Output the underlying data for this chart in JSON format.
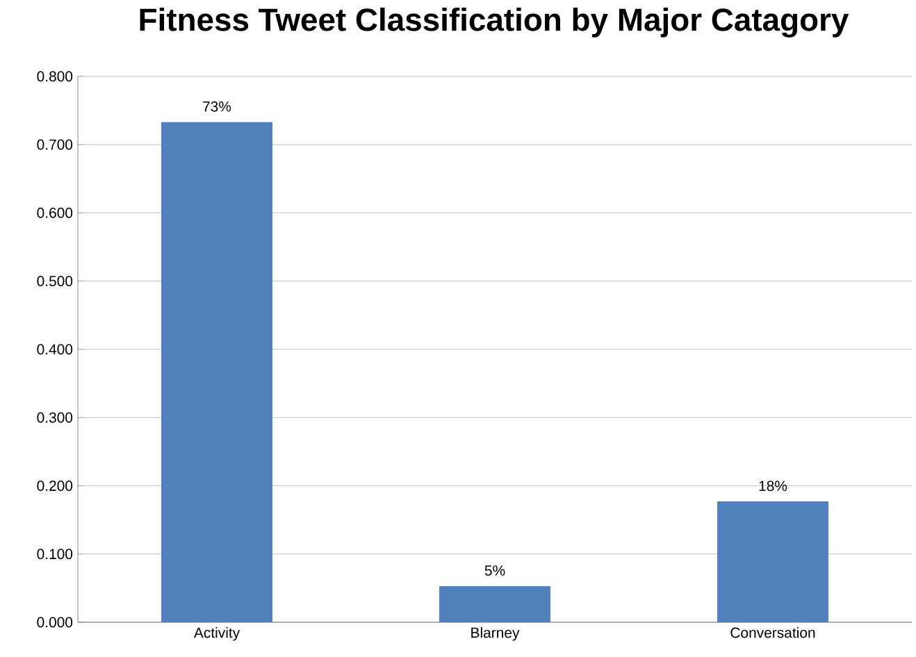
{
  "chart_data": {
    "type": "bar",
    "title": "Fitness Tweet Classification by Major Catagory",
    "categories": [
      "Activity",
      "Blarney",
      "Conversation"
    ],
    "values": [
      0.733,
      0.053,
      0.177
    ],
    "value_labels": [
      "73%",
      "5%",
      "18%"
    ],
    "color": "#4f81bd",
    "ylim": [
      0,
      0.8
    ],
    "yticks": [
      {
        "value": 0,
        "label": "0.000"
      },
      {
        "value": 0.1,
        "label": "0.100"
      },
      {
        "value": 0.2,
        "label": "0.200"
      },
      {
        "value": 0.3,
        "label": "0.300"
      },
      {
        "value": 0.4,
        "label": "0.400"
      },
      {
        "value": 0.5,
        "label": "0.500"
      },
      {
        "value": 0.6,
        "label": "0.600"
      },
      {
        "value": 0.7,
        "label": "0.700"
      },
      {
        "value": 0.8,
        "label": "0.800"
      }
    ],
    "grid": "y"
  }
}
